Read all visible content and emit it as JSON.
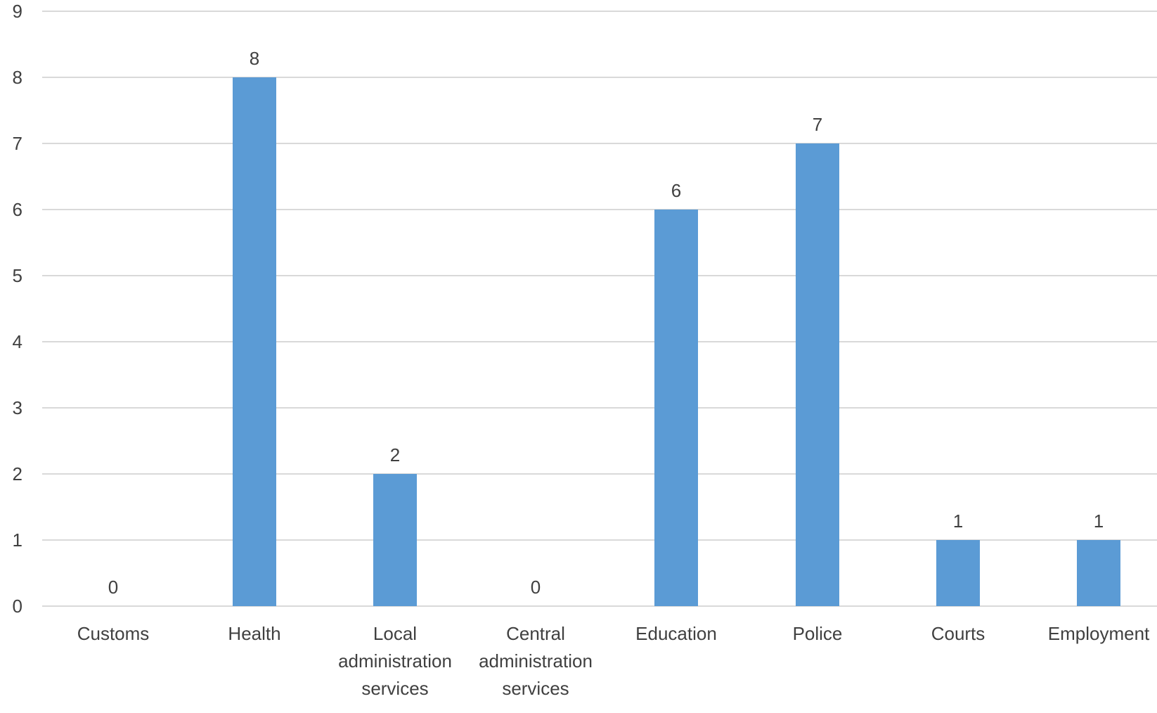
{
  "chart_data": {
    "type": "bar",
    "title": "",
    "xlabel": "",
    "ylabel": "",
    "categories": [
      "Customs",
      "Health",
      "Local administration services",
      "Central administration services",
      "Education",
      "Police",
      "Courts",
      "Employment"
    ],
    "category_lines": [
      [
        "Customs"
      ],
      [
        "Health"
      ],
      [
        "Local",
        "administration",
        "services"
      ],
      [
        "Central",
        "administration",
        "services"
      ],
      [
        "Education"
      ],
      [
        "Police"
      ],
      [
        "Courts"
      ],
      [
        "Employment"
      ]
    ],
    "values": [
      0,
      8,
      2,
      0,
      6,
      7,
      1,
      1
    ],
    "data_labels": [
      "0",
      "8",
      "2",
      "0",
      "6",
      "7",
      "1",
      "1"
    ],
    "ylim": [
      0,
      9
    ],
    "yticks": [
      0,
      1,
      2,
      3,
      4,
      5,
      6,
      7,
      8,
      9
    ],
    "grid": true,
    "legend": "none",
    "bar_color": "#5b9bd5",
    "grid_color": "#d9d9d9",
    "text_color": "#404040"
  }
}
